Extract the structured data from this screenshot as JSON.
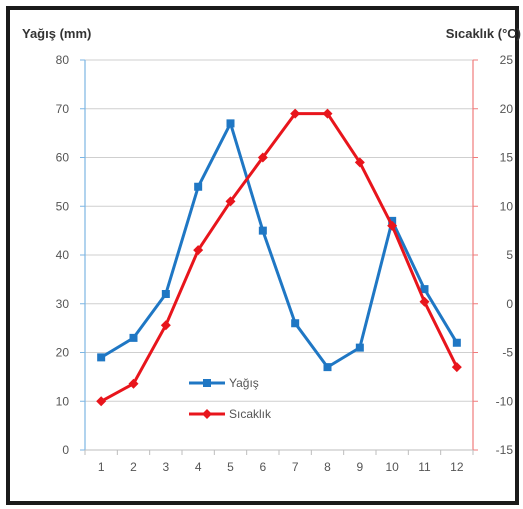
{
  "chart_data": {
    "type": "line",
    "categories": [
      "1",
      "2",
      "3",
      "4",
      "5",
      "6",
      "7",
      "8",
      "9",
      "10",
      "11",
      "12"
    ],
    "y_left": {
      "label": "Yağış (mm)",
      "ylim": [
        0,
        80
      ],
      "ticks": [
        "0",
        "10",
        "20",
        "30",
        "40",
        "50",
        "60",
        "70",
        "80"
      ]
    },
    "y_right": {
      "label": "Sıcaklık (°C)",
      "ylim": [
        -15,
        25
      ],
      "ticks": [
        "-15",
        "-10",
        "-5",
        "0",
        "5",
        "10",
        "15",
        "20",
        "25"
      ]
    },
    "series": [
      {
        "name": "Yağış",
        "axis": "left",
        "color": "#1f77c4",
        "marker": "square",
        "values": [
          19,
          23,
          32,
          54,
          67,
          45,
          26,
          17,
          21,
          47,
          33,
          22
        ]
      },
      {
        "name": "Sıcaklık",
        "axis": "right",
        "color": "#e8151c",
        "marker": "diamond",
        "values": [
          -10,
          -8.2,
          -2.2,
          5.5,
          10.5,
          15,
          19.5,
          19.5,
          14.5,
          8,
          0.2,
          -6.5
        ]
      }
    ],
    "grid": "horizontal",
    "legend": "bottom-left"
  }
}
